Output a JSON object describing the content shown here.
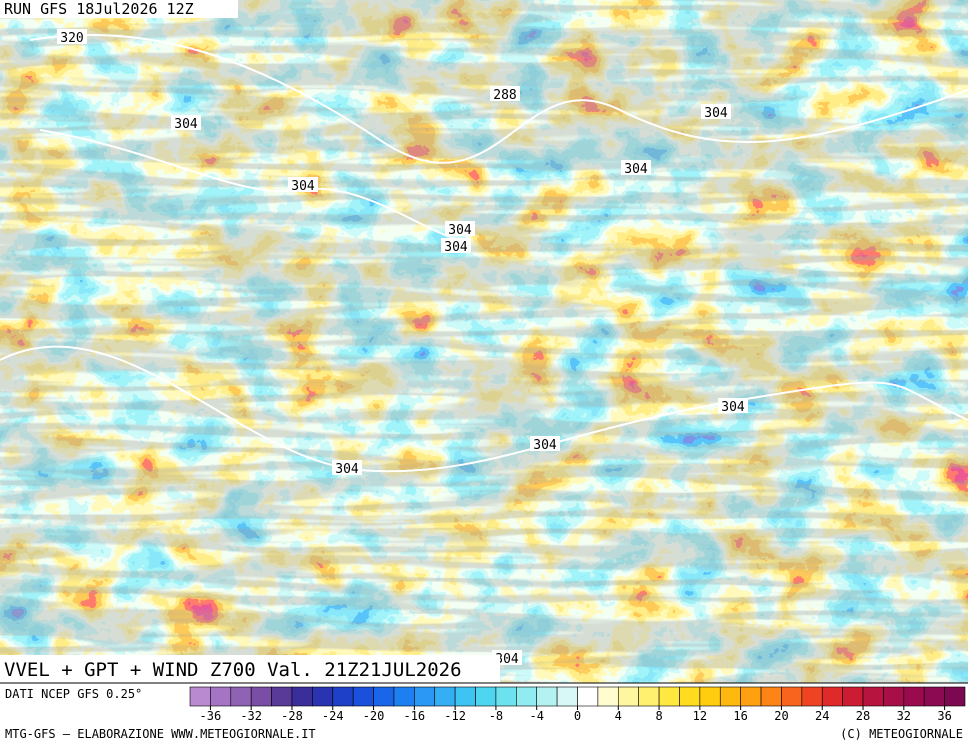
{
  "header": {
    "run": "RUN GFS 18Jul2026 12Z"
  },
  "contour_labels": [
    320,
    288,
    304,
    304,
    304,
    304,
    304,
    304,
    304,
    304,
    304,
    304
  ],
  "title": "VVEL + GPT + WIND Z700 Val. 21Z21JUL2026",
  "source": "DATI NCEP GFS 0.25°",
  "legend": {
    "ticks": [
      -36,
      -32,
      -28,
      -24,
      -20,
      -16,
      -12,
      -8,
      -4,
      0,
      4,
      8,
      12,
      16,
      20,
      24,
      28,
      32,
      36
    ],
    "colors": [
      "#b98ad0",
      "#a574c4",
      "#9062b4",
      "#7a4ea6",
      "#5a3a98",
      "#3a2f9a",
      "#2a33b0",
      "#1e3fc8",
      "#1a50dc",
      "#1a66ea",
      "#1e80f0",
      "#2a98f4",
      "#36aef4",
      "#3ec4f2",
      "#4ed6f0",
      "#6ce2ee",
      "#90ecf0",
      "#b4f2f2",
      "#d8f8f8",
      "#ffffff",
      "#fffcd0",
      "#fff6a0",
      "#fff070",
      "#ffe840",
      "#ffdc20",
      "#ffcc10",
      "#ffb810",
      "#ffa010",
      "#ff8418",
      "#f8641e",
      "#ee4424",
      "#e02a2a",
      "#cc1c34",
      "#b81440",
      "#a80e48",
      "#9a0a4e",
      "#8c0a52",
      "#7c0852"
    ]
  },
  "footer": {
    "left": "MTG-GFS — ELABORAZIONE WWW.METEOGIORNALE.IT",
    "right": "(C) METEOGIORNALE"
  }
}
